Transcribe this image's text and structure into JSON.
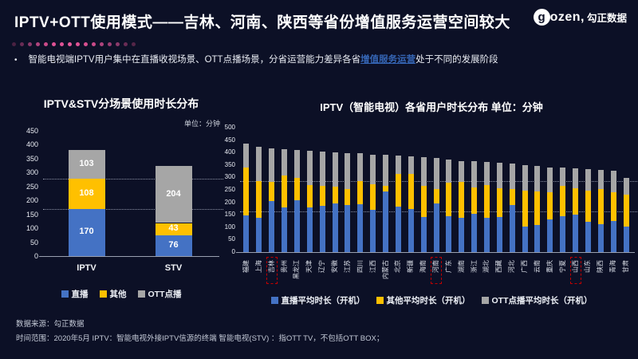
{
  "header": {
    "title": "IPTV+OTT使用模式——吉林、河南、陕西等省份增值服务运营空间较大",
    "logo_g": "g",
    "logo_text": "ozen,",
    "logo_suffix": "勾正数据"
  },
  "bullet": {
    "marker": "•",
    "prefix": "智能电视端IPTV用户集中在直播收视场景、OTT点播场景，分省运营能力差异各省",
    "highlight": "增值服务运营",
    "suffix": "处于不同的发展阶段"
  },
  "colors": {
    "background": "#0c1026",
    "series_blue": "#4472c4",
    "series_yellow": "#ffc000",
    "series_gray": "#a6a6a6",
    "highlight_text": "#3565b4",
    "highlight_box": "#c00000"
  },
  "dots": [
    "#4a2242",
    "#6a2c55",
    "#8c3a6b",
    "#b0437d",
    "#cb4a89",
    "#e05295",
    "#e05295",
    "#e85b9c",
    "#e05295",
    "#d94f90",
    "#cb4a89",
    "#b0437d",
    "#9c3e73",
    "#8c3a6b",
    "#6a2c55",
    "#552648"
  ],
  "chart_data": [
    {
      "type": "bar",
      "stacked": true,
      "title": "IPTV&STV分场景使用时长分布",
      "unit_label": "单位：分钟",
      "categories": [
        "IPTV",
        "STV"
      ],
      "series": [
        {
          "name": "直播",
          "color": "#4472c4",
          "values": [
            170,
            76
          ]
        },
        {
          "name": "其他",
          "color": "#ffc000",
          "values": [
            108,
            43
          ]
        },
        {
          "name": "OTT点播",
          "color": "#a6a6a6",
          "values": [
            103,
            204
          ]
        }
      ],
      "ylim": [
        0,
        450
      ],
      "ytick": 50,
      "reference_lines": [
        170,
        278
      ],
      "grid": "off",
      "legend_position": "bottom",
      "value_labels": true
    },
    {
      "type": "bar",
      "stacked": true,
      "title": "IPTV（智能电视）各省用户时长分布 单位：分钟",
      "categories": [
        "福建",
        "上海",
        "吉林",
        "贵州",
        "黑龙江",
        "天津",
        "辽宁",
        "安徽",
        "江苏",
        "四川",
        "江西",
        "内蒙古",
        "北京",
        "新疆",
        "海南",
        "河南",
        "广东",
        "湖南",
        "浙江",
        "湖北",
        "西藏",
        "河北",
        "广西",
        "云南",
        "重庆",
        "宁夏",
        "山西",
        "山东",
        "陕西",
        "青海",
        "甘肃"
      ],
      "highlighted_categories": [
        "吉林",
        "河南",
        "山西"
      ],
      "series": [
        {
          "name": "直播平均时长（开机）",
          "color": "#4472c4",
          "values": [
            148,
            137,
            206,
            179,
            208,
            179,
            185,
            195,
            190,
            192,
            169,
            243,
            183,
            174,
            142,
            195,
            145,
            137,
            153,
            139,
            140,
            190,
            104,
            110,
            133,
            144,
            152,
            123,
            112,
            126,
            104
          ]
        },
        {
          "name": "其他平均时长（开机）",
          "color": "#ffc000",
          "values": [
            192,
            149,
            75,
            129,
            89,
            91,
            82,
            68,
            64,
            94,
            104,
            24,
            130,
            139,
            125,
            59,
            133,
            144,
            107,
            131,
            117,
            64,
            142,
            134,
            108,
            121,
            104,
            123,
            142,
            115,
            127
          ]
        },
        {
          "name": "OTT点播平均时长（开机）",
          "color": "#a6a6a6",
          "values": [
            96,
            138,
            135,
            106,
            114,
            138,
            138,
            137,
            143,
            110,
            119,
            123,
            75,
            73,
            113,
            123,
            93,
            86,
            105,
            91,
            102,
            103,
            105,
            101,
            100,
            74,
            82,
            88,
            76,
            85,
            67
          ]
        }
      ],
      "ylim": [
        0,
        500
      ],
      "ytick": 50,
      "reference_lines": [
        165,
        285
      ],
      "grid": "off",
      "legend_position": "bottom",
      "value_labels": false
    }
  ],
  "footer": {
    "source": "数据来源：勾正数据",
    "scope": "时间范围：2020年5月 IPTV：智能电视外接IPTV信源的终端 智能电视(STV) ：指OTT TV，不包括OTT BOX；"
  }
}
